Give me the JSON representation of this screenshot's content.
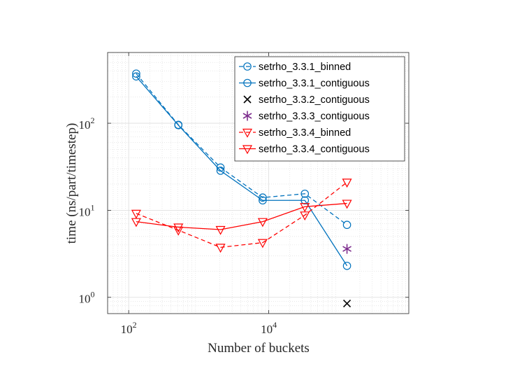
{
  "chart_data": {
    "type": "line",
    "xscale": "log",
    "yscale": "log",
    "xlim": [
      50,
      1000000
    ],
    "ylim": [
      0.65,
      650
    ],
    "xlabel": "Number of buckets",
    "ylabel": "time (ns/part/timestep)",
    "x_ticks": [
      {
        "value": 100,
        "base": "10",
        "exp": "2"
      },
      {
        "value": 10000,
        "base": "10",
        "exp": "4"
      }
    ],
    "y_ticks": [
      {
        "value": 1,
        "base": "10",
        "exp": "0"
      },
      {
        "value": 10,
        "base": "10",
        "exp": "1"
      },
      {
        "value": 100,
        "base": "10",
        "exp": "2"
      }
    ],
    "grid": true,
    "legend_position": "top-right",
    "series": [
      {
        "name": "setrho_3.3.1_binned",
        "color": "#0072BD",
        "dash": true,
        "marker": "circle",
        "x": [
          128,
          512,
          2048,
          8192,
          32768,
          131072
        ],
        "y": [
          372,
          96,
          31,
          14,
          15.5,
          6.8
        ]
      },
      {
        "name": "setrho_3.3.1_contiguous",
        "color": "#0072BD",
        "dash": false,
        "marker": "circle",
        "x": [
          128,
          512,
          2048,
          8192,
          32768,
          131072
        ],
        "y": [
          345,
          95,
          28.5,
          13,
          13,
          2.3
        ]
      },
      {
        "name": "setrho_3.3.2_contiguous",
        "color": "#000000",
        "dash": false,
        "marker": "x",
        "x": [
          131072
        ],
        "y": [
          0.85
        ]
      },
      {
        "name": "setrho_3.3.3_contiguous",
        "color": "#7E2F8E",
        "dash": false,
        "marker": "asterisk",
        "x": [
          131072
        ],
        "y": [
          3.6
        ]
      },
      {
        "name": "setrho_3.3.4_binned",
        "color": "#FF0000",
        "dash": true,
        "marker": "triangle-down",
        "x": [
          128,
          512,
          2048,
          8192,
          32768,
          131072
        ],
        "y": [
          9.2,
          5.9,
          3.75,
          4.25,
          8.8,
          21
        ]
      },
      {
        "name": "setrho_3.3.4_contiguous",
        "color": "#FF0000",
        "dash": false,
        "marker": "triangle-down",
        "x": [
          128,
          512,
          2048,
          8192,
          32768,
          131072
        ],
        "y": [
          7.4,
          6.4,
          6.0,
          7.4,
          11.0,
          12.0
        ]
      }
    ]
  }
}
